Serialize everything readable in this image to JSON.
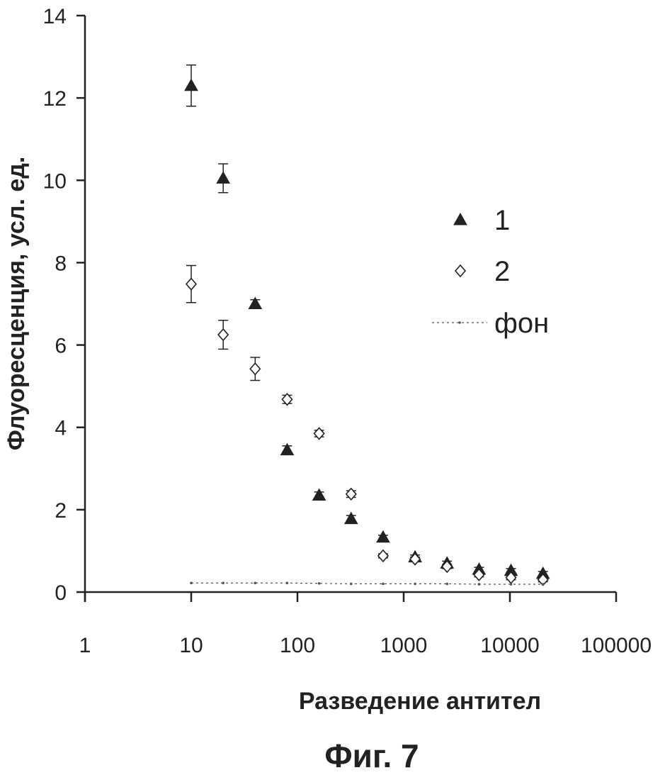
{
  "chart_data": {
    "type": "scatter",
    "xscale": "log",
    "xlim": [
      1,
      100000
    ],
    "ylim": [
      0,
      14
    ],
    "xlabel": "Разведение антител",
    "ylabel": "Флуоресценция, усл. ед.",
    "x_ticks": [
      "1",
      "10",
      "100",
      "1000",
      "10000",
      "100000"
    ],
    "y_ticks": [
      "0",
      "2",
      "4",
      "6",
      "8",
      "10",
      "12",
      "14"
    ],
    "grid": false,
    "legend_position": "right",
    "series": [
      {
        "name": "1",
        "marker": "filled-triangle",
        "x": [
          10,
          20,
          40,
          80,
          160,
          320,
          640,
          1280,
          2560,
          5120,
          10240,
          20480
        ],
        "y": [
          12.3,
          10.05,
          7.0,
          3.45,
          2.35,
          1.78,
          1.33,
          0.85,
          0.7,
          0.55,
          0.52,
          0.45
        ],
        "err": [
          0.5,
          0.35,
          0.1,
          0.1,
          0.08,
          0.08,
          0.05,
          0.05,
          0.05,
          0.05,
          0.05,
          0.05
        ]
      },
      {
        "name": "2",
        "marker": "open-diamond",
        "x": [
          10,
          20,
          40,
          80,
          160,
          320,
          640,
          1280,
          2560,
          5120,
          10240,
          20480
        ],
        "y": [
          7.48,
          6.25,
          5.42,
          4.68,
          3.85,
          2.38,
          0.88,
          0.8,
          0.62,
          0.42,
          0.35,
          0.3
        ],
        "err": [
          0.45,
          0.35,
          0.28,
          0.1,
          0.08,
          0.08,
          0.05,
          0.05,
          0.05,
          0.05,
          0.05,
          0.05
        ]
      },
      {
        "name": "фон",
        "marker": "dotted-line",
        "x": [
          10,
          20,
          40,
          80,
          160,
          320,
          640,
          1280,
          2560,
          5120,
          10240,
          20480
        ],
        "y": [
          0.22,
          0.22,
          0.22,
          0.22,
          0.21,
          0.2,
          0.2,
          0.2,
          0.2,
          0.19,
          0.19,
          0.19
        ]
      }
    ]
  },
  "caption": "Фиг. 7",
  "colors": {
    "ink": "#222222",
    "background_line": "#555555"
  }
}
